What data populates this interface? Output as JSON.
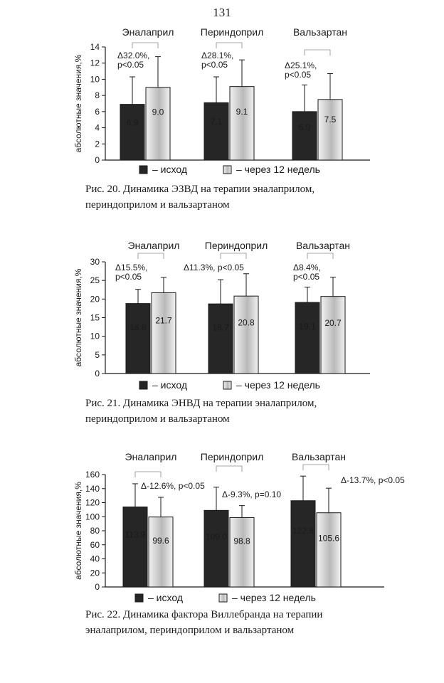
{
  "page_number": "131",
  "legend": {
    "baseline": "– исход",
    "after": "– через 12 недель"
  },
  "colors": {
    "baseline_bar": "#262626",
    "after_bar_light": "#f2f2f2",
    "after_bar_mid": "#b9b9b9",
    "axis": "#1a1a1a"
  },
  "figures": [
    {
      "caption_line1": "Рис. 20. Динамика ЭЗВД на терапии эналаприлом,",
      "caption_line2": "периндоприлом и вальзартаном"
    },
    {
      "caption_line1": "Рис. 21. Динамика ЭНВД на терапии эналаприлом,",
      "caption_line2": "периндоприлом и вальзартаном"
    },
    {
      "caption_line1": "Рис. 22. Динамика фактора Виллебранда на терапии",
      "caption_line2": "эналаприлом, периндоприлом и вальзартаном"
    }
  ],
  "chart_data": [
    {
      "type": "bar",
      "ylabel": "абсолютные значения,%",
      "ylim": [
        0,
        14
      ],
      "yticks": [
        0,
        2,
        4,
        6,
        8,
        10,
        12,
        14
      ],
      "categories": [
        "Эналаприл",
        "Периндоприл",
        "Вальзартан"
      ],
      "series": [
        {
          "name": "– исход",
          "values": [
            6.9,
            7.1,
            6.0
          ],
          "labels": [
            "6.9",
            "7.1",
            "6.0"
          ],
          "errors": [
            3.4,
            3.2,
            3.3
          ]
        },
        {
          "name": "– через 12 недель",
          "values": [
            9.0,
            9.1,
            7.5
          ],
          "labels": [
            "9.0",
            "9.1",
            "7.5"
          ],
          "errors": [
            3.8,
            3.3,
            3.2
          ]
        }
      ],
      "annotations": [
        {
          "line1": "Δ32.0%,",
          "line2": "p<0.05"
        },
        {
          "line1": "Δ28.1%,",
          "line2": "p<0.05"
        },
        {
          "line1": "Δ25.1%,",
          "line2": "p<0.05"
        }
      ]
    },
    {
      "type": "bar",
      "ylabel": "абсолютные значения,%",
      "ylim": [
        0,
        30
      ],
      "yticks": [
        0,
        5,
        10,
        15,
        20,
        25,
        30
      ],
      "categories": [
        "Эналаприл",
        "Периндоприл",
        "Вальзартан"
      ],
      "series": [
        {
          "name": "– исход",
          "values": [
            18.8,
            18.7,
            19.1
          ],
          "labels": [
            "18.8",
            "18.7",
            "19.1"
          ],
          "errors": [
            3.8,
            6.5,
            4.1
          ]
        },
        {
          "name": "– через 12 недель",
          "values": [
            21.7,
            20.8,
            20.7
          ],
          "labels": [
            "21.7",
            "20.8",
            "20.7"
          ],
          "errors": [
            4.1,
            6.0,
            5.2
          ]
        }
      ],
      "annotations": [
        {
          "line1": "Δ15.5%,",
          "line2": "p<0.05"
        },
        {
          "line1": "Δ11.3%, p<0.05",
          "line2": ""
        },
        {
          "line1": "Δ8.4%,",
          "line2": "p<0.05"
        }
      ]
    },
    {
      "type": "bar",
      "ylabel": "абсолютные значения,%",
      "ylim": [
        0,
        160
      ],
      "yticks": [
        0,
        20,
        40,
        60,
        80,
        100,
        120,
        140,
        160
      ],
      "categories": [
        "Эналаприл",
        "Периндоприл",
        "Вальзартан"
      ],
      "series": [
        {
          "name": "– исход",
          "values": [
            113.9,
            109.0,
            122.8
          ],
          "labels": [
            "113.9",
            "109.0",
            "122.8"
          ],
          "errors": [
            33,
            33,
            35
          ]
        },
        {
          "name": "– через 12 недель",
          "values": [
            99.6,
            98.8,
            105.6
          ],
          "labels": [
            "99.6",
            "98.8",
            "105.6"
          ],
          "errors": [
            28,
            17,
            35
          ]
        }
      ],
      "annotations": [
        {
          "line1": "Δ-12.6%, p<0.05",
          "line2": ""
        },
        {
          "line1": "Δ-9.3%, p=0.10",
          "line2": ""
        },
        {
          "line1": "Δ-13.7%, p<0.05",
          "line2": ""
        }
      ]
    }
  ]
}
